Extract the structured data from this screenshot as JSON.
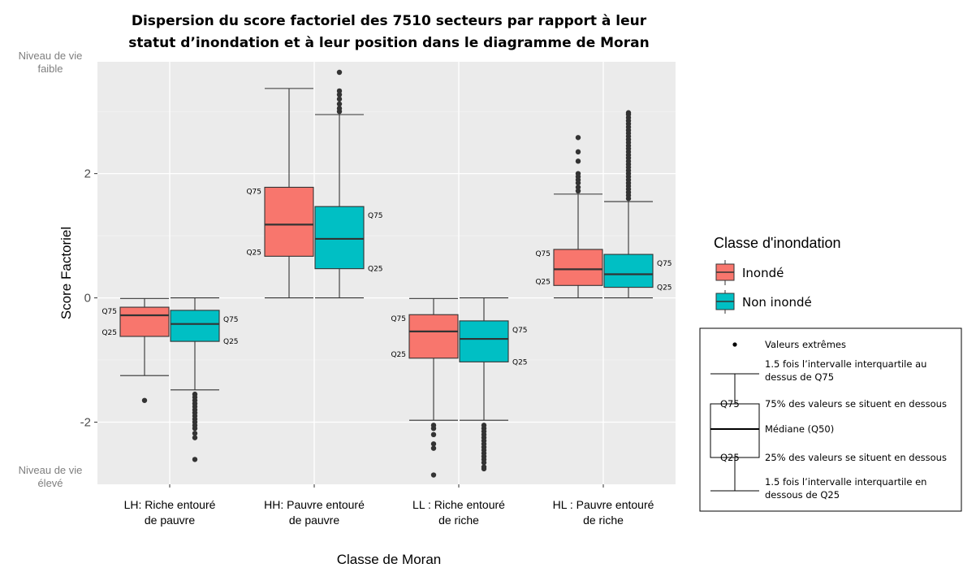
{
  "chart_data": {
    "type": "boxplot",
    "title": [
      "Dispersion du score factoriel des 7510 secteurs par rapport à leur",
      "statut d’inondation et à leur position dans le diagramme de Moran"
    ],
    "xlabel": "Classe de Moran",
    "ylabel": "Score Factoriel",
    "ylim": [
      -3.0,
      3.8
    ],
    "yticks": [
      -2,
      0,
      2
    ],
    "grid": true,
    "categories": [
      [
        "LH: Riche entouré",
        "de pauvre"
      ],
      [
        "HH: Pauvre entouré",
        "de pauvre"
      ],
      [
        "LL : Riche entouré",
        "de riche"
      ],
      [
        "HL : Pauvre entouré",
        "de riche"
      ]
    ],
    "side_labels": {
      "top": [
        "Niveau de vie",
        "faible"
      ],
      "bottom": [
        "Niveau de vie",
        "élevé"
      ]
    },
    "quartile_labels": {
      "q75": "Q75",
      "q25": "Q25"
    },
    "legend": {
      "title": "Classe d'inondation",
      "placement": "right",
      "entries": [
        {
          "name": "Inondé",
          "color": "#f8766d"
        },
        {
          "name": "Non inondé",
          "color": "#00bfc4"
        }
      ]
    },
    "series": [
      {
        "name": "Inondé",
        "color": "#f8766d",
        "boxes": [
          {
            "whisker_low": -1.25,
            "q1": -0.62,
            "median": -0.28,
            "q3": -0.15,
            "whisker_high": -0.01,
            "outliers": [
              -1.65
            ]
          },
          {
            "whisker_low": 0.0,
            "q1": 0.67,
            "median": 1.18,
            "q3": 1.78,
            "whisker_high": 3.37,
            "outliers": []
          },
          {
            "whisker_low": -1.97,
            "q1": -0.97,
            "median": -0.54,
            "q3": -0.27,
            "whisker_high": -0.01,
            "outliers": [
              -2.05,
              -2.1,
              -2.2,
              -2.35,
              -2.42,
              -2.85
            ]
          },
          {
            "whisker_low": 0.0,
            "q1": 0.2,
            "median": 0.46,
            "q3": 0.78,
            "whisker_high": 1.67,
            "outliers": [
              1.72,
              1.78,
              1.85,
              1.9,
              1.95,
              2.0,
              2.2,
              2.35,
              2.58
            ]
          }
        ]
      },
      {
        "name": "Non inondé",
        "color": "#00bfc4",
        "boxes": [
          {
            "whisker_low": -1.48,
            "q1": -0.7,
            "median": -0.42,
            "q3": -0.2,
            "whisker_high": 0.0,
            "outliers": [
              -1.55,
              -1.6,
              -1.65,
              -1.7,
              -1.75,
              -1.8,
              -1.85,
              -1.9,
              -1.95,
              -2.0,
              -2.05,
              -2.1,
              -2.18,
              -2.25,
              -2.6
            ]
          },
          {
            "whisker_low": 0.0,
            "q1": 0.47,
            "median": 0.95,
            "q3": 1.47,
            "whisker_high": 2.95,
            "outliers": [
              3.0,
              3.05,
              3.12,
              3.2,
              3.27,
              3.33,
              3.63
            ]
          },
          {
            "whisker_low": -1.97,
            "q1": -1.03,
            "median": -0.66,
            "q3": -0.37,
            "whisker_high": 0.0,
            "outliers": [
              -2.05,
              -2.1,
              -2.15,
              -2.2,
              -2.25,
              -2.3,
              -2.35,
              -2.4,
              -2.45,
              -2.5,
              -2.55,
              -2.6,
              -2.65,
              -2.72,
              -2.75
            ]
          },
          {
            "whisker_low": 0.0,
            "q1": 0.17,
            "median": 0.38,
            "q3": 0.7,
            "whisker_high": 1.55,
            "outliers": [
              1.6,
              1.65,
              1.7,
              1.75,
              1.8,
              1.85,
              1.9,
              1.95,
              2.0,
              2.05,
              2.1,
              2.15,
              2.2,
              2.25,
              2.3,
              2.35,
              2.4,
              2.45,
              2.5,
              2.55,
              2.6,
              2.65,
              2.7,
              2.75,
              2.8,
              2.85,
              2.9,
              2.95,
              2.98
            ]
          }
        ]
      }
    ],
    "key_explainer": {
      "items": [
        "Valeurs extrêmes",
        "1.5 fois l’intervalle interquartile au",
        "dessus de Q75",
        "Q75",
        "75% des valeurs se situent en dessous",
        "Médiane (Q50)",
        "Q25",
        "25% des valeurs se situent en dessous",
        "1.5 fois l’intervalle interquartile en",
        "dessous de Q25"
      ]
    }
  }
}
